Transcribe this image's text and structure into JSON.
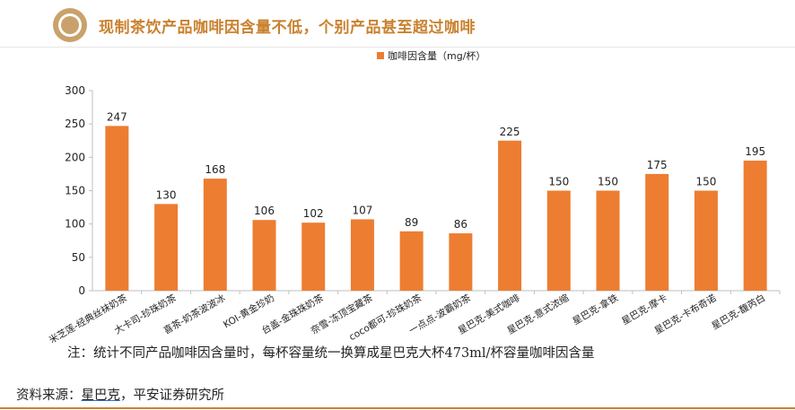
{
  "page": {
    "title": "现制茶饮产品咖啡因含量不低，个别产品甚至超过咖啡",
    "note": "注：统计不同产品咖啡因含量时，每杯容量统一换算成星巴克大杯473ml/杯容量咖啡因含量",
    "source_prefix": "资料来源：",
    "source_link": "星巴克",
    "source_suffix": "，平安证券研究所"
  },
  "colors": {
    "bar": "#ED7D31",
    "title": "#C9812E",
    "axis": "#BFBFBF",
    "text": "#222222"
  },
  "chart_data": {
    "type": "bar",
    "title": "",
    "xlabel": "",
    "ylabel": "",
    "ylim": [
      0,
      300
    ],
    "yticks": [
      0,
      50,
      100,
      150,
      200,
      250,
      300
    ],
    "grid": false,
    "legend_position": "top-center",
    "categories": [
      "米芝莲-经典丝袜奶茶",
      "大卡司-珍珠奶茶",
      "喜茶-奶茶波波冰",
      "KOI-黄金珍奶",
      "台盖-金珠珠奶茶",
      "奈雪-冻顶宝藏茶",
      "coco都可-珍珠奶茶",
      "一点点-波霸奶茶",
      "星巴克-美式咖啡",
      "星巴克-意式浓缩",
      "星巴克-拿铁",
      "星巴克-摩卡",
      "星巴克-卡布奇诺",
      "星巴克-馥芮白"
    ],
    "series": [
      {
        "name": "咖啡因含量（mg/杯）",
        "values": [
          247,
          130,
          168,
          106,
          102,
          107,
          89,
          86,
          225,
          150,
          150,
          175,
          150,
          195
        ]
      }
    ]
  }
}
